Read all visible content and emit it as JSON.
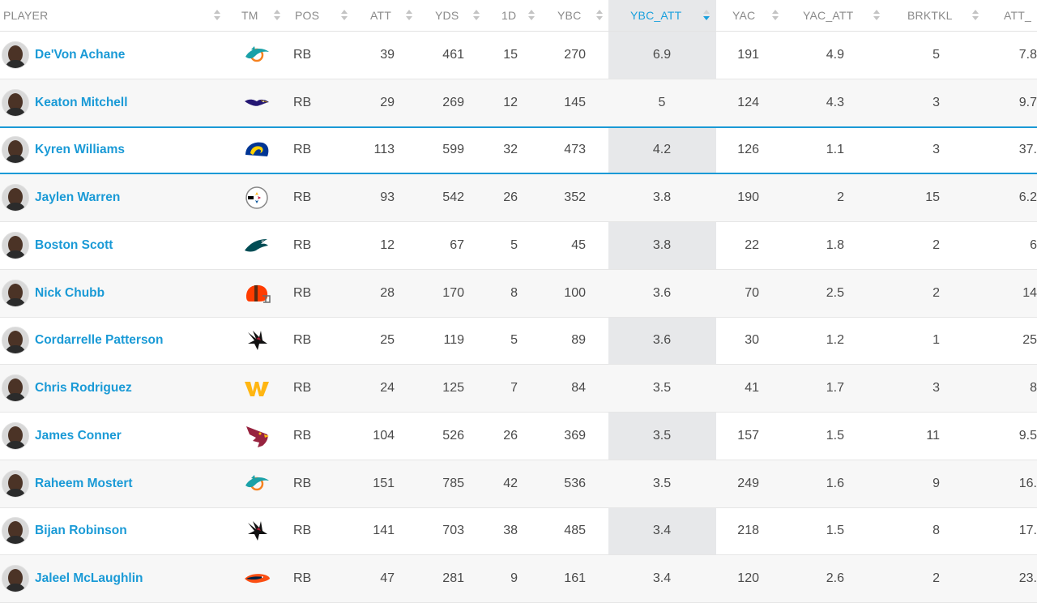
{
  "columns": [
    {
      "label": "PLAYER"
    },
    {
      "label": "TM"
    },
    {
      "label": "POS"
    },
    {
      "label": "ATT"
    },
    {
      "label": "YDS"
    },
    {
      "label": "1D"
    },
    {
      "label": "YBC"
    },
    {
      "label": "YBC_ATT"
    },
    {
      "label": "YAC"
    },
    {
      "label": "YAC_ATT"
    },
    {
      "label": "BRKTKL"
    },
    {
      "label": "ATT_"
    }
  ],
  "sorted_column": "YBC_ATT",
  "sort_direction": "descending",
  "colors": {
    "link": "#1a9ad6",
    "sorted_header": "#1aa0dd",
    "sorted_column_bg": "#e7e8ea"
  },
  "rows": [
    {
      "player": "De'Von Achane",
      "team_icon": "dolphins-logo-icon",
      "pos": "RB",
      "att": "39",
      "yds": "461",
      "fd": "15",
      "ybc": "270",
      "ybc_att": "6.9",
      "yac": "191",
      "yac_att": "4.9",
      "brktkl": "5",
      "att_br": "7.8"
    },
    {
      "player": "Keaton Mitchell",
      "team_icon": "ravens-logo-icon",
      "pos": "RB",
      "att": "29",
      "yds": "269",
      "fd": "12",
      "ybc": "145",
      "ybc_att": "5",
      "yac": "124",
      "yac_att": "4.3",
      "brktkl": "3",
      "att_br": "9.7"
    },
    {
      "player": "Kyren Williams",
      "team_icon": "rams-logo-icon",
      "pos": "RB",
      "att": "113",
      "yds": "599",
      "fd": "32",
      "ybc": "473",
      "ybc_att": "4.2",
      "yac": "126",
      "yac_att": "1.1",
      "brktkl": "3",
      "att_br": "37."
    },
    {
      "player": "Jaylen Warren",
      "team_icon": "steelers-logo-icon",
      "pos": "RB",
      "att": "93",
      "yds": "542",
      "fd": "26",
      "ybc": "352",
      "ybc_att": "3.8",
      "yac": "190",
      "yac_att": "2",
      "brktkl": "15",
      "att_br": "6.2"
    },
    {
      "player": "Boston Scott",
      "team_icon": "eagles-logo-icon",
      "pos": "RB",
      "att": "12",
      "yds": "67",
      "fd": "5",
      "ybc": "45",
      "ybc_att": "3.8",
      "yac": "22",
      "yac_att": "1.8",
      "brktkl": "2",
      "att_br": "6"
    },
    {
      "player": "Nick Chubb",
      "team_icon": "browns-logo-icon",
      "pos": "RB",
      "att": "28",
      "yds": "170",
      "fd": "8",
      "ybc": "100",
      "ybc_att": "3.6",
      "yac": "70",
      "yac_att": "2.5",
      "brktkl": "2",
      "att_br": "14"
    },
    {
      "player": "Cordarrelle Patterson",
      "team_icon": "falcons-logo-icon",
      "pos": "RB",
      "att": "25",
      "yds": "119",
      "fd": "5",
      "ybc": "89",
      "ybc_att": "3.6",
      "yac": "30",
      "yac_att": "1.2",
      "brktkl": "1",
      "att_br": "25"
    },
    {
      "player": "Chris Rodriguez",
      "team_icon": "commanders-logo-icon",
      "pos": "RB",
      "att": "24",
      "yds": "125",
      "fd": "7",
      "ybc": "84",
      "ybc_att": "3.5",
      "yac": "41",
      "yac_att": "1.7",
      "brktkl": "3",
      "att_br": "8"
    },
    {
      "player": "James Conner",
      "team_icon": "cardinals-logo-icon",
      "pos": "RB",
      "att": "104",
      "yds": "526",
      "fd": "26",
      "ybc": "369",
      "ybc_att": "3.5",
      "yac": "157",
      "yac_att": "1.5",
      "brktkl": "11",
      "att_br": "9.5"
    },
    {
      "player": "Raheem Mostert",
      "team_icon": "dolphins-logo-icon",
      "pos": "RB",
      "att": "151",
      "yds": "785",
      "fd": "42",
      "ybc": "536",
      "ybc_att": "3.5",
      "yac": "249",
      "yac_att": "1.6",
      "brktkl": "9",
      "att_br": "16."
    },
    {
      "player": "Bijan Robinson",
      "team_icon": "falcons-logo-icon",
      "pos": "RB",
      "att": "141",
      "yds": "703",
      "fd": "38",
      "ybc": "485",
      "ybc_att": "3.4",
      "yac": "218",
      "yac_att": "1.5",
      "brktkl": "8",
      "att_br": "17."
    },
    {
      "player": "Jaleel McLaughlin",
      "team_icon": "broncos-logo-icon",
      "pos": "RB",
      "att": "47",
      "yds": "281",
      "fd": "9",
      "ybc": "161",
      "ybc_att": "3.4",
      "yac": "120",
      "yac_att": "2.6",
      "brktkl": "2",
      "att_br": "23."
    }
  ]
}
